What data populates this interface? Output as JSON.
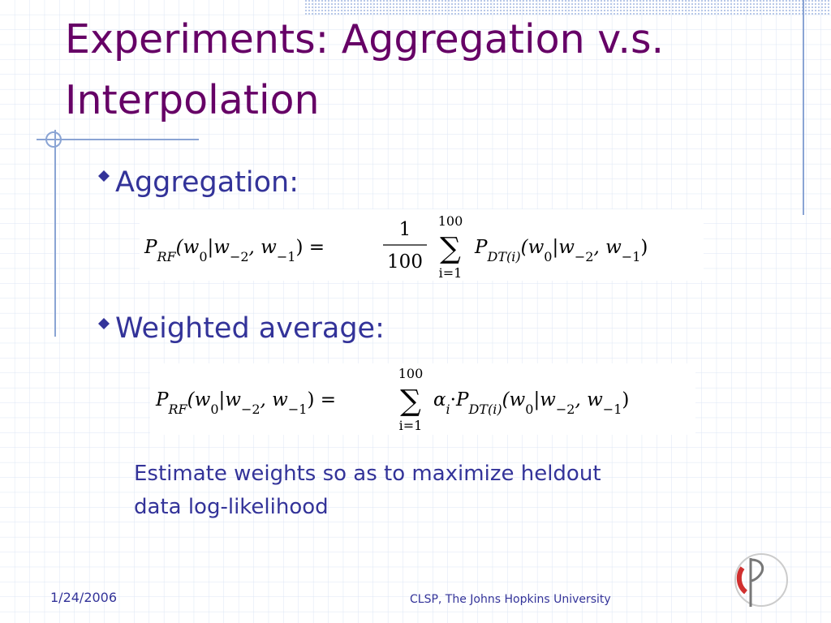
{
  "header": {
    "title_lines": [
      "Experiments: Aggregation v.s.",
      "Interpolation"
    ]
  },
  "bullets": [
    {
      "label": "Aggregation:",
      "formula": {
        "lhs": [
          "P",
          "RF",
          "(w",
          "0",
          "|w",
          "−2",
          ", w",
          "−1",
          ") ="
        ],
        "numerator": "1",
        "denominator": "100",
        "sum": "∑",
        "sum_upper": "100",
        "sum_lower": "i=1",
        "rhs": [
          "P",
          "DT(i)",
          "(w",
          "0",
          "|w",
          "−2",
          ", w",
          "−1",
          ")"
        ]
      }
    },
    {
      "label": "Weighted average:",
      "formula": {
        "lhs": [
          "P",
          "RF",
          "(w",
          "0",
          "|w",
          "−2",
          ", w",
          "−1",
          ") ="
        ],
        "sum": "∑",
        "sum_upper": "100",
        "sum_lower": "i=1",
        "rhs": [
          "α",
          "i",
          "·",
          "P",
          "DT(i)",
          "(w",
          "0",
          "|w",
          "−2",
          ", w",
          "−1",
          ")"
        ]
      }
    }
  ],
  "note_lines": [
    "Estimate weights so as to maximize heldout",
    "data log-likelihood"
  ],
  "footer": {
    "date": "1/24/2006",
    "organization": "CLSP, The Johns Hopkins University"
  }
}
